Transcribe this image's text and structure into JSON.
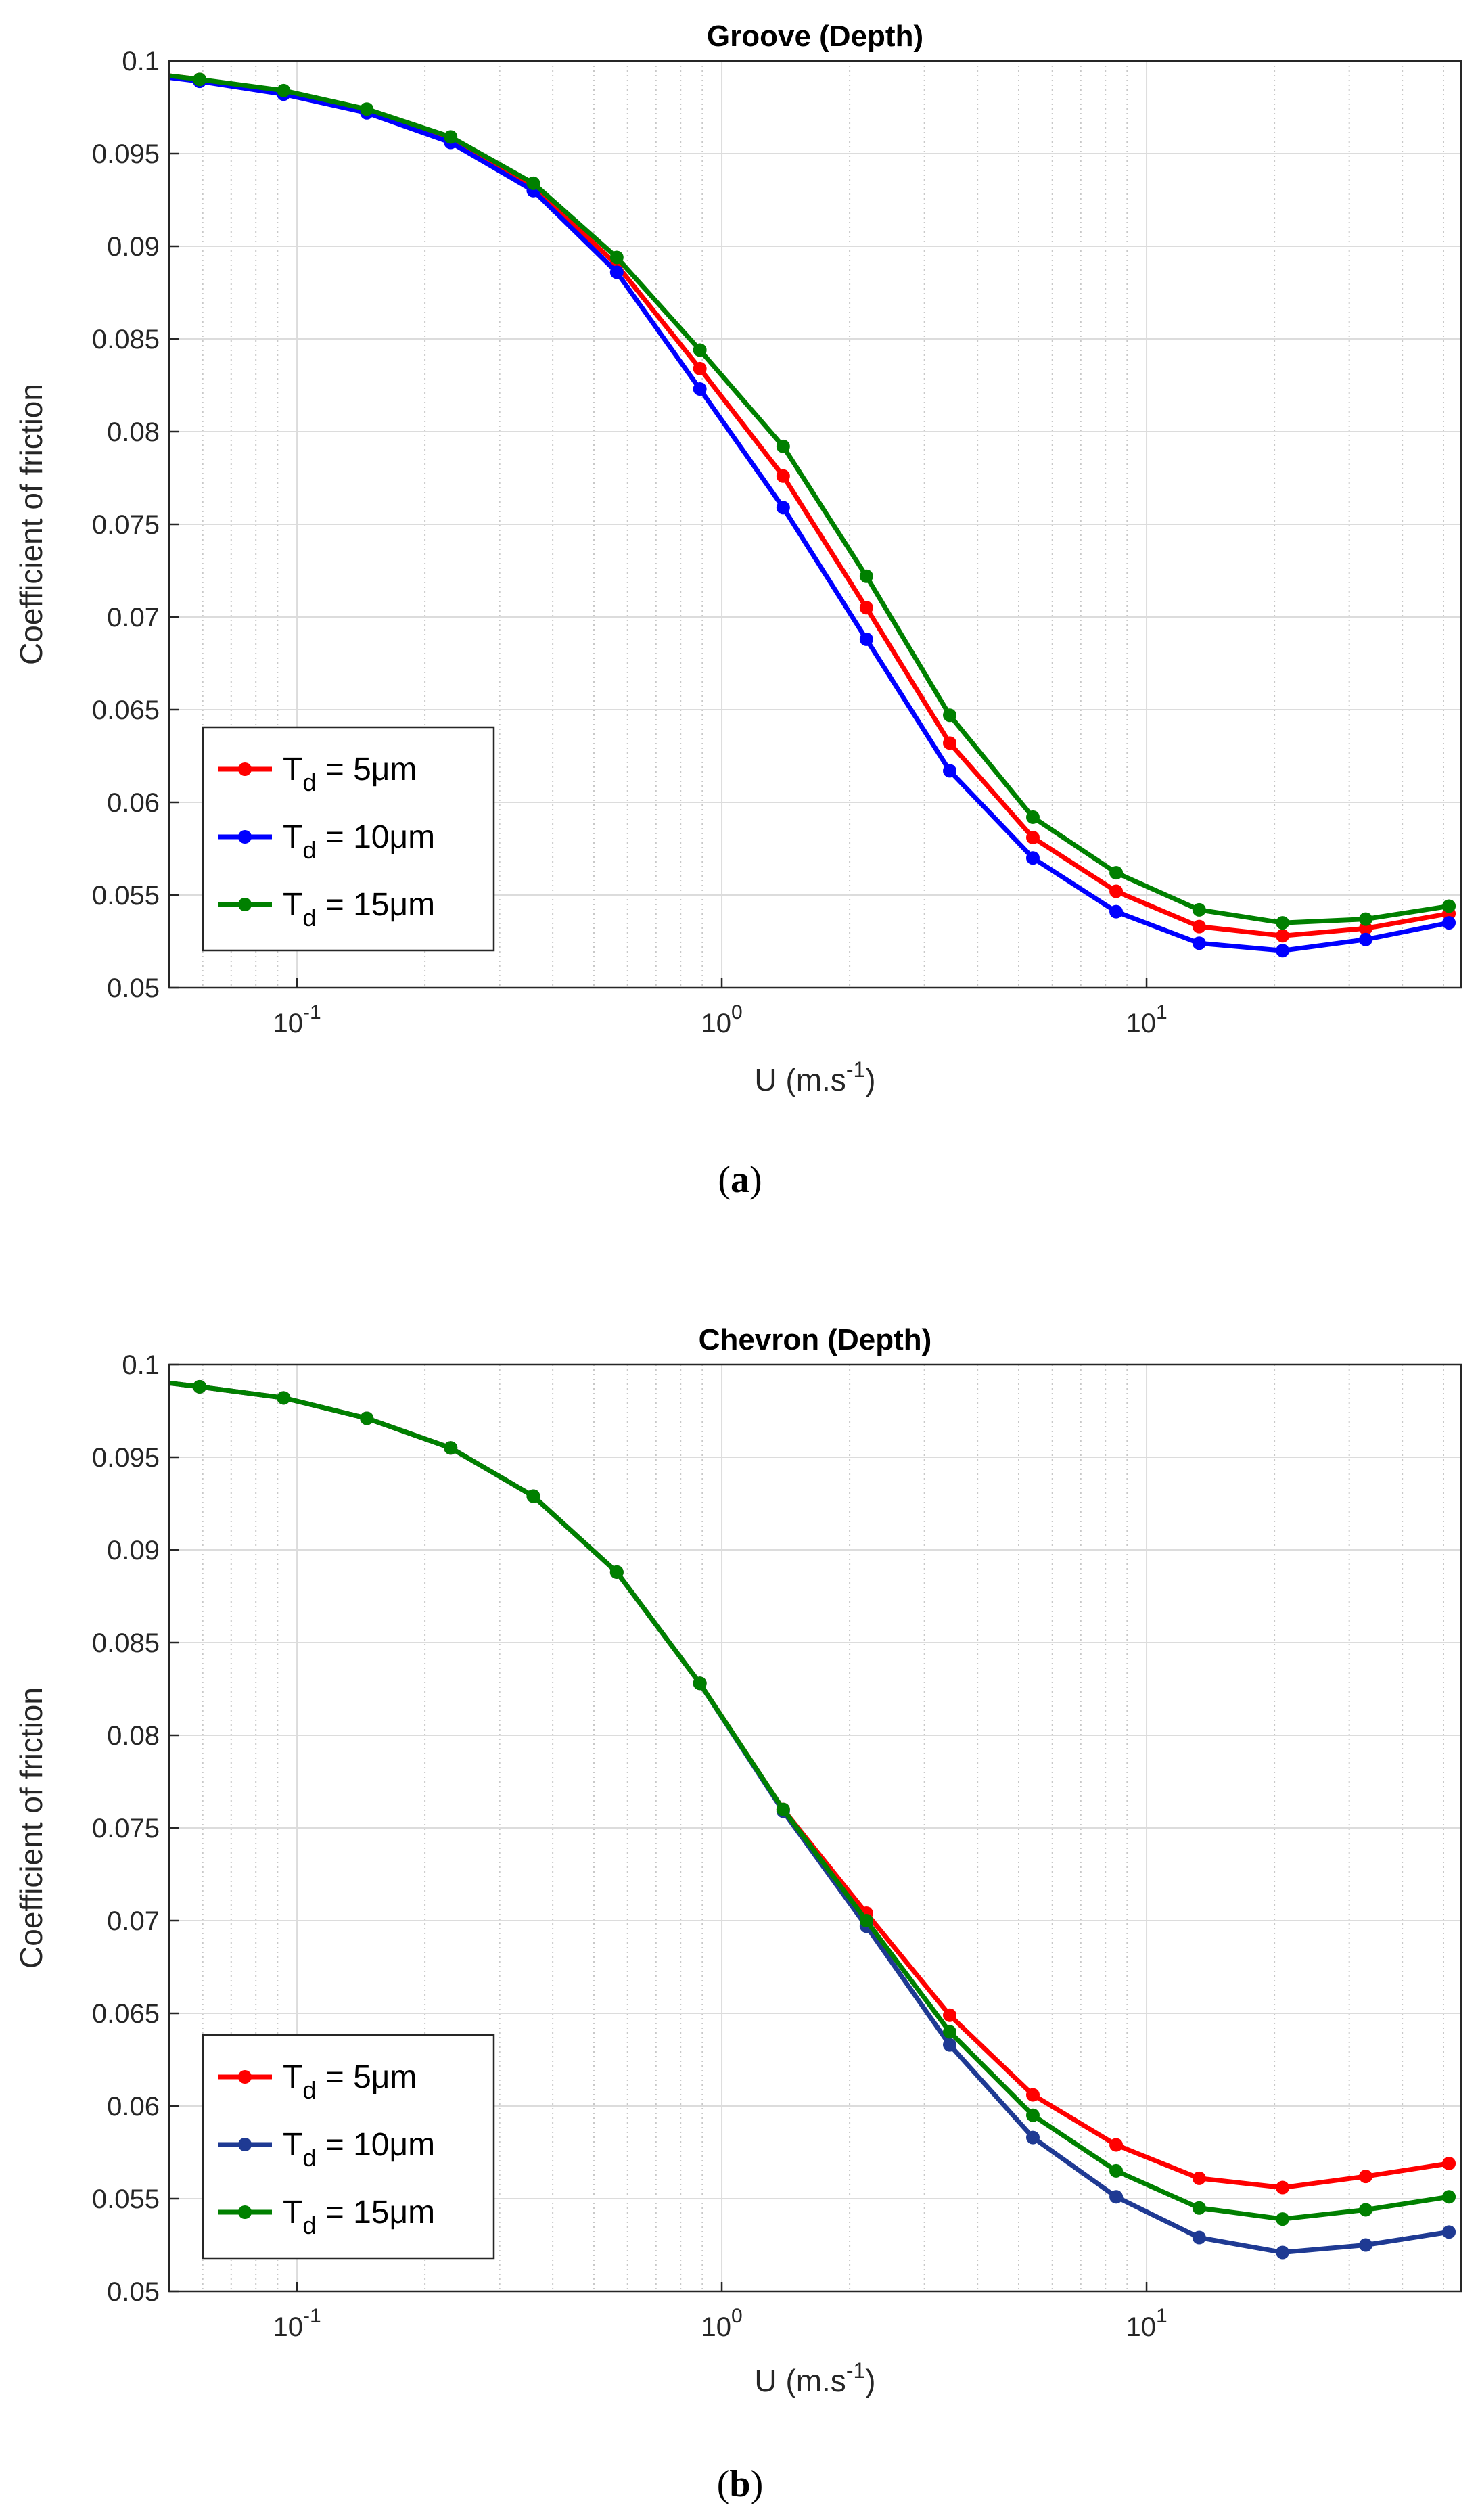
{
  "chart_data": [
    {
      "type": "line",
      "title": "Groove (Depth)",
      "xlabel_base": "U (m.s",
      "xlabel_exp": "-1",
      "xlabel_close": ")",
      "ylabel": "Coefficient of friction",
      "xscale": "log",
      "xlim": [
        0.05,
        55
      ],
      "ylim": [
        0.05,
        0.1
      ],
      "grid": true,
      "legend_position": "bottom-left",
      "yticks": [
        "0.05",
        "0.055",
        "0.06",
        "0.065",
        "0.07",
        "0.075",
        "0.08",
        "0.085",
        "0.09",
        "0.095",
        "0.1"
      ],
      "xticks": [
        {
          "base": "10",
          "exp": "-1",
          "value": 0.1
        },
        {
          "base": "10",
          "exp": "0",
          "value": 1
        },
        {
          "base": "10",
          "exp": "1",
          "value": 10
        }
      ],
      "x": [
        0.05,
        0.059,
        0.093,
        0.146,
        0.23,
        0.36,
        0.566,
        0.888,
        1.395,
        2.19,
        3.44,
        5.4,
        8.48,
        13.3,
        20.9,
        32.8,
        51.5
      ],
      "series": [
        {
          "name": "T_d = 5μm",
          "sub": "d",
          "label_prefix": "T",
          "label_suffix": " = 5μm",
          "color": "#ff0000",
          "values": [
            0.0992,
            0.099,
            0.0983,
            0.0973,
            0.0957,
            0.0932,
            0.089,
            0.0834,
            0.0776,
            0.0705,
            0.0632,
            0.0581,
            0.0552,
            0.0533,
            0.0528,
            0.0532,
            0.054
          ]
        },
        {
          "name": "T_d = 10μm",
          "sub": "d",
          "label_prefix": "T",
          "label_suffix": " = 10μm",
          "color": "#0000ff",
          "values": [
            0.0991,
            0.0989,
            0.0982,
            0.0972,
            0.0956,
            0.093,
            0.0886,
            0.0823,
            0.0759,
            0.0688,
            0.0617,
            0.057,
            0.0541,
            0.0524,
            0.052,
            0.0526,
            0.0535
          ]
        },
        {
          "name": "T_d = 15μm",
          "sub": "d",
          "label_prefix": "T",
          "label_suffix": " = 15μm",
          "color": "#008000",
          "values": [
            0.0992,
            0.099,
            0.0984,
            0.0974,
            0.0959,
            0.0934,
            0.0894,
            0.0844,
            0.0792,
            0.0722,
            0.0647,
            0.0592,
            0.0562,
            0.0542,
            0.0535,
            0.0537,
            0.0544
          ]
        }
      ],
      "caption_text": "a"
    },
    {
      "type": "line",
      "title": "Chevron (Depth)",
      "xlabel_base": "U (m.s",
      "xlabel_exp": "-1",
      "xlabel_close": ")",
      "ylabel": "Coefficient of friction",
      "xscale": "log",
      "xlim": [
        0.05,
        55
      ],
      "ylim": [
        0.05,
        0.1
      ],
      "grid": true,
      "legend_position": "bottom-left",
      "yticks": [
        "0.05",
        "0.055",
        "0.06",
        "0.065",
        "0.07",
        "0.075",
        "0.08",
        "0.085",
        "0.09",
        "0.095",
        "0.1"
      ],
      "xticks": [
        {
          "base": "10",
          "exp": "-1",
          "value": 0.1
        },
        {
          "base": "10",
          "exp": "0",
          "value": 1
        },
        {
          "base": "10",
          "exp": "1",
          "value": 10
        }
      ],
      "x": [
        0.05,
        0.059,
        0.093,
        0.146,
        0.23,
        0.36,
        0.566,
        0.888,
        1.395,
        2.19,
        3.44,
        5.4,
        8.48,
        13.3,
        20.9,
        32.8,
        51.5
      ],
      "series": [
        {
          "name": "T_d = 5μm",
          "sub": "d",
          "label_prefix": "T",
          "label_suffix": " = 5μm",
          "color": "#ff0000",
          "values": [
            0.099,
            0.0988,
            0.0982,
            0.0971,
            0.0955,
            0.0929,
            0.0888,
            0.0828,
            0.076,
            0.0704,
            0.0649,
            0.0606,
            0.0579,
            0.0561,
            0.0556,
            0.0562,
            0.0569
          ]
        },
        {
          "name": "T_d = 10μm",
          "sub": "d",
          "label_prefix": "T",
          "label_suffix": " = 10μm",
          "color": "#1f3a93",
          "values": [
            0.099,
            0.0988,
            0.0982,
            0.0971,
            0.0955,
            0.0929,
            0.0888,
            0.0828,
            0.0759,
            0.0697,
            0.0633,
            0.0583,
            0.0551,
            0.0529,
            0.0521,
            0.0525,
            0.0532
          ]
        },
        {
          "name": "T_d = 15μm",
          "sub": "d",
          "label_prefix": "T",
          "label_suffix": " = 15μm",
          "color": "#008000",
          "values": [
            0.099,
            0.0988,
            0.0982,
            0.0971,
            0.0955,
            0.0929,
            0.0888,
            0.0828,
            0.076,
            0.07,
            0.064,
            0.0595,
            0.0565,
            0.0545,
            0.0539,
            0.0544,
            0.0551
          ]
        }
      ],
      "caption_text": "b"
    }
  ]
}
